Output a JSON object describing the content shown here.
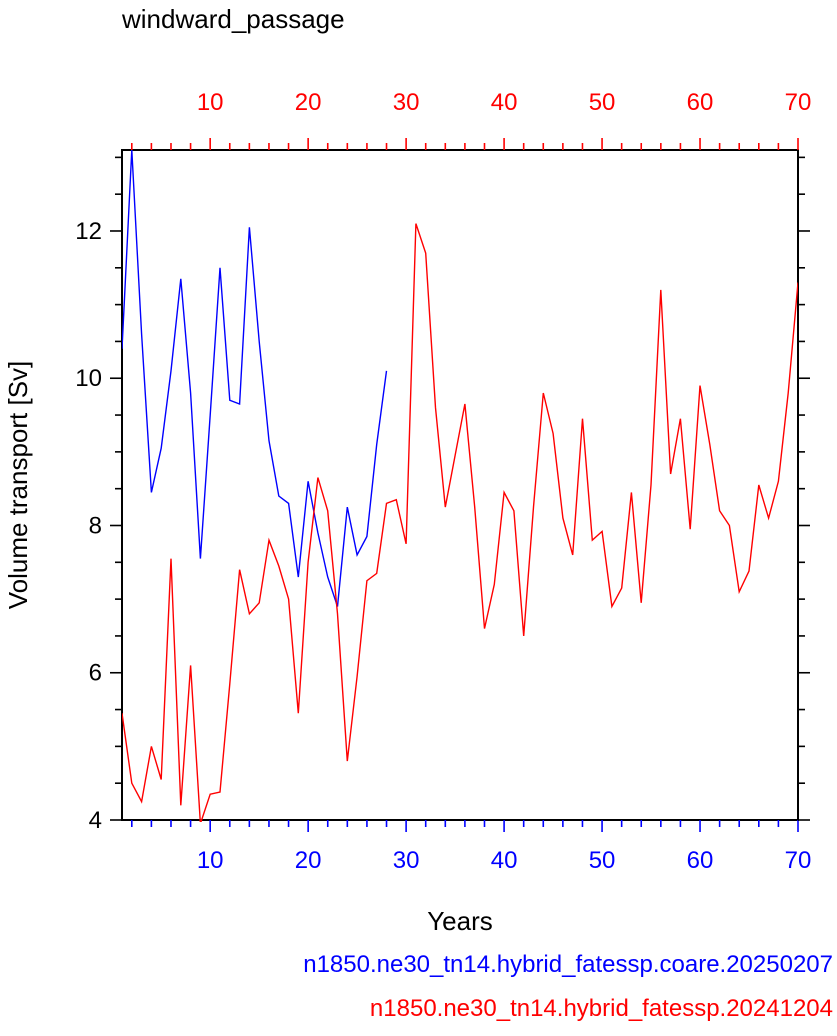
{
  "chart_data": {
    "type": "line",
    "title": "windward_passage",
    "xlabel": "Years",
    "ylabel": "Volume transport [Sv]",
    "xlim": [
      1,
      70
    ],
    "ylim": [
      4,
      13.1
    ],
    "x_ticks": [
      10,
      20,
      30,
      40,
      50,
      60,
      70
    ],
    "y_ticks": [
      4,
      6,
      8,
      10,
      12
    ],
    "bottom_axis_color": "#0000ff",
    "top_axis_color": "#ff0000",
    "legend_placement": "bottom-right",
    "series": [
      {
        "name": "n1850.ne30_tn14.hybrid_fatessp.coare.20250207",
        "color": "#0000ff",
        "x": [
          1,
          2,
          3,
          4,
          5,
          6,
          7,
          8,
          9,
          10,
          11,
          12,
          13,
          14,
          15,
          16,
          17,
          18,
          19,
          20,
          21,
          22,
          23,
          24,
          25,
          26,
          27,
          28
        ],
        "values": [
          10.4,
          13.1,
          10.6,
          8.45,
          9.05,
          10.1,
          11.35,
          9.8,
          7.55,
          9.5,
          11.5,
          9.7,
          9.65,
          12.05,
          10.5,
          9.15,
          8.4,
          8.3,
          7.3,
          8.6,
          7.9,
          7.3,
          6.9,
          8.25,
          7.6,
          7.85,
          9.1,
          10.1
        ]
      },
      {
        "name": "n1850.ne30_tn14.hybrid_fatessp.20241204",
        "color": "#ff0000",
        "x": [
          1,
          2,
          3,
          4,
          5,
          6,
          7,
          8,
          9,
          10,
          11,
          12,
          13,
          14,
          15,
          16,
          17,
          18,
          19,
          20,
          21,
          22,
          23,
          24,
          25,
          26,
          27,
          28,
          29,
          30,
          31,
          32,
          33,
          34,
          35,
          36,
          37,
          38,
          39,
          40,
          41,
          42,
          43,
          44,
          45,
          46,
          47,
          48,
          49,
          50,
          51,
          52,
          53,
          54,
          55,
          56,
          57,
          58,
          59,
          60,
          61,
          62,
          63,
          64,
          65,
          66,
          67,
          68,
          69,
          70
        ],
        "values": [
          5.45,
          4.5,
          4.25,
          5.0,
          4.55,
          7.55,
          4.2,
          6.1,
          3.95,
          4.35,
          4.38,
          5.85,
          7.4,
          6.8,
          6.95,
          7.8,
          7.45,
          7.0,
          5.45,
          7.5,
          8.65,
          8.2,
          6.8,
          4.8,
          5.95,
          7.25,
          7.35,
          8.3,
          8.35,
          7.75,
          12.1,
          11.7,
          9.6,
          8.25,
          8.95,
          9.65,
          8.25,
          6.6,
          7.2,
          8.45,
          8.2,
          6.5,
          8.25,
          9.8,
          9.25,
          8.1,
          7.6,
          9.45,
          7.8,
          7.92,
          6.9,
          7.15,
          8.45,
          6.95,
          8.55,
          11.2,
          8.7,
          9.45,
          7.95,
          9.9,
          9.1,
          8.2,
          8.0,
          7.1,
          7.38,
          8.55,
          8.1,
          8.6,
          9.8,
          11.3
        ]
      }
    ]
  }
}
